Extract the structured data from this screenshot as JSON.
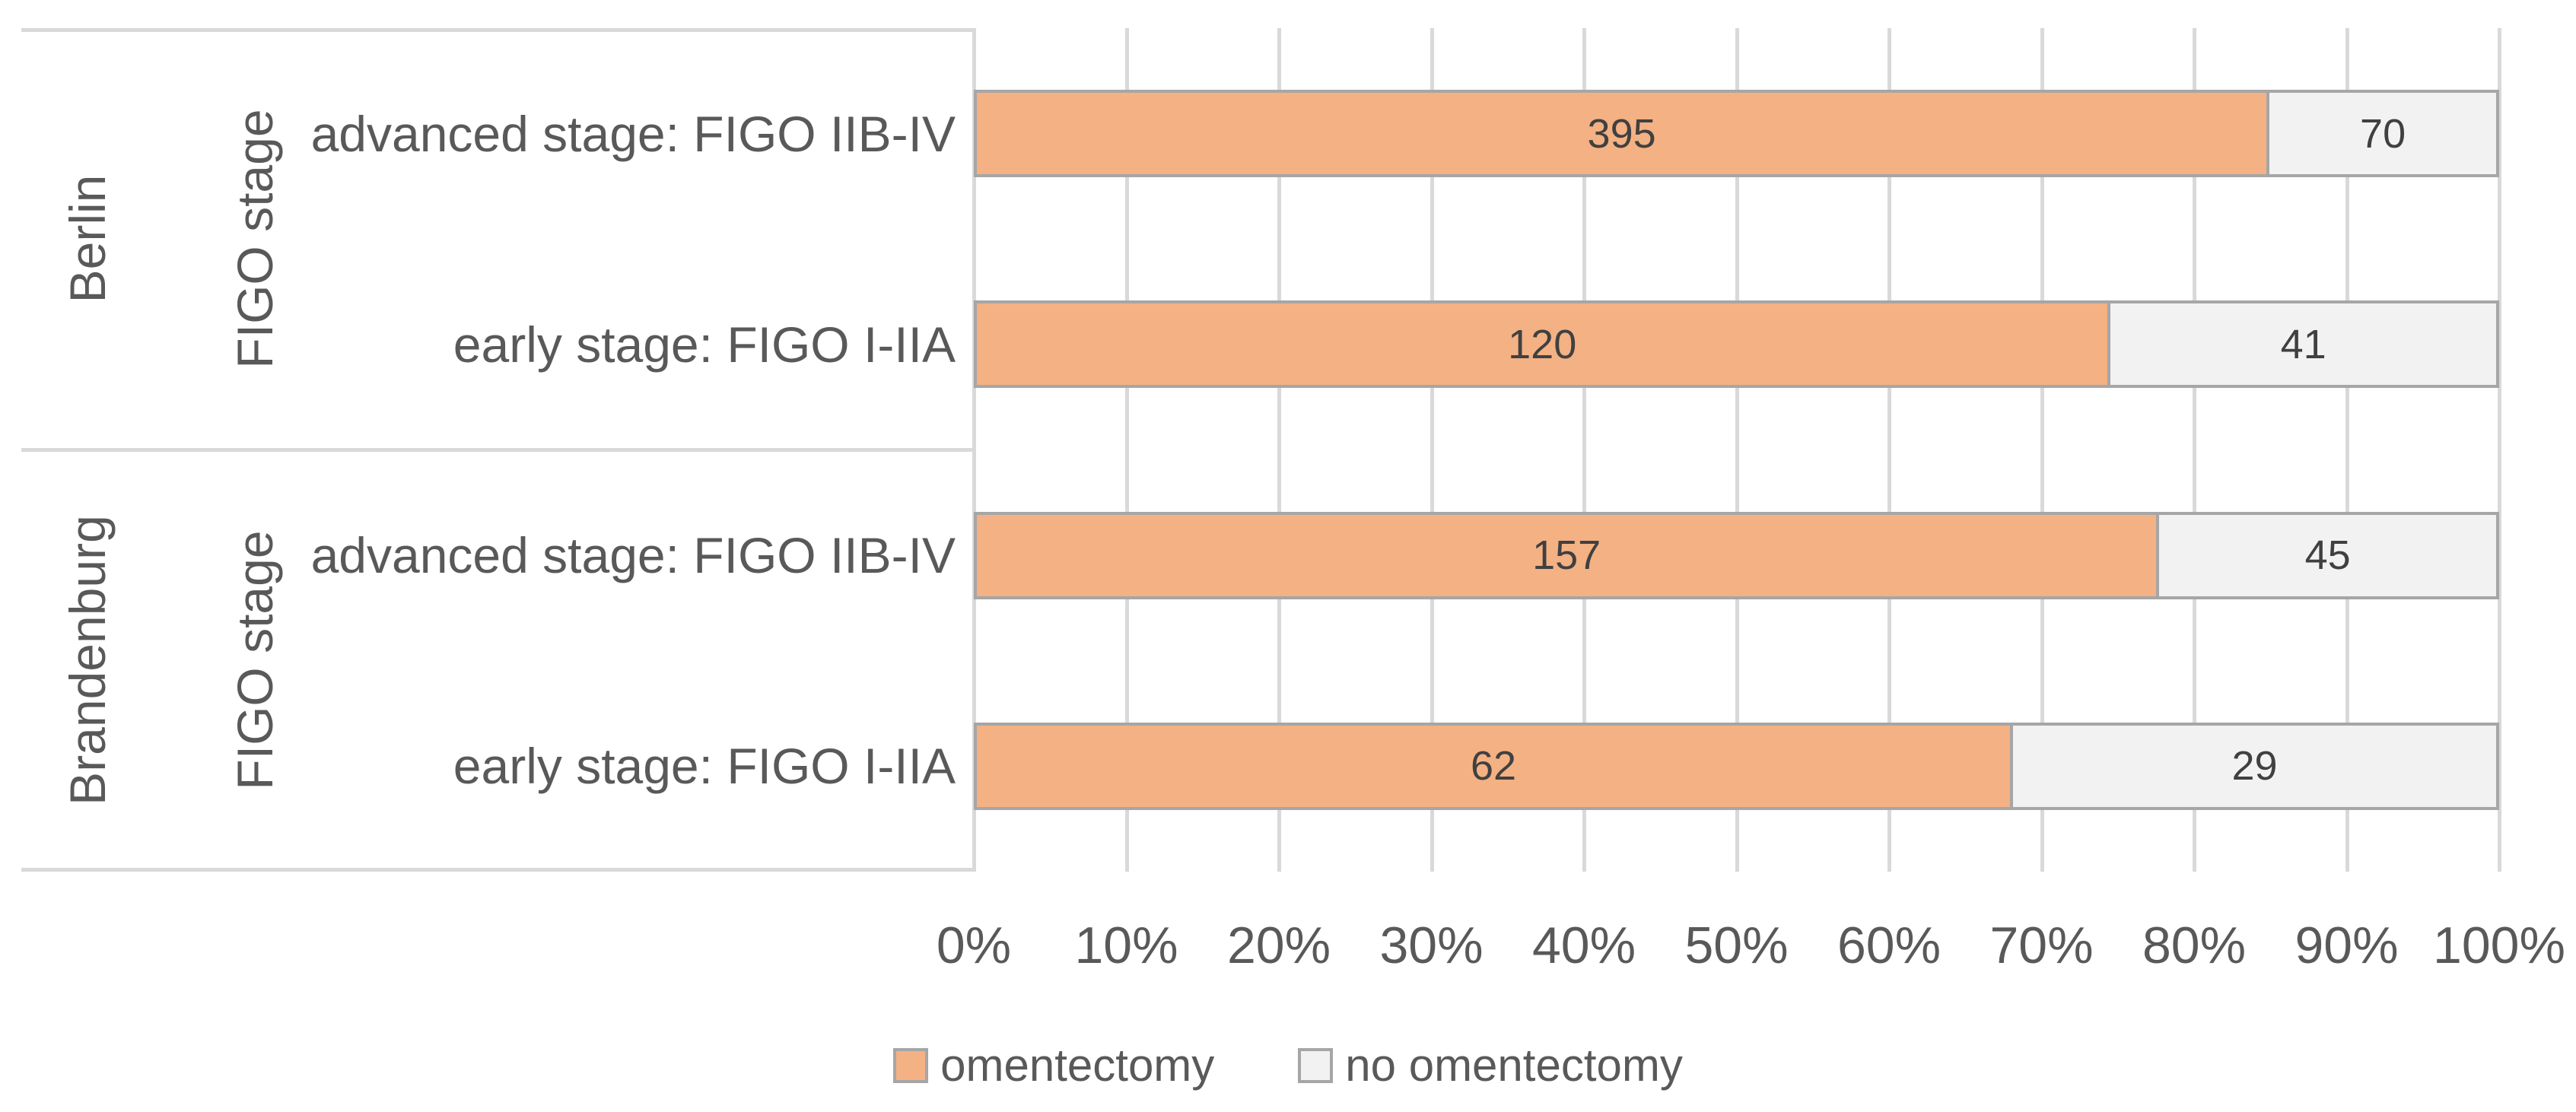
{
  "chart_data": {
    "type": "bar",
    "variant": "horizontal 100% stacked",
    "title": "",
    "xlabel": "",
    "ylabel": "FIGO stage",
    "xlim": [
      0,
      1
    ],
    "grid": "vertical",
    "legend_position": "bottom-center",
    "series": [
      {
        "name": "omentectomy",
        "color": "#F4B183"
      },
      {
        "name": "no omentectomy",
        "color": "#F2F2F2"
      }
    ],
    "groups": [
      {
        "region": "Berlin",
        "axis_label": "FIGO stage",
        "categories": [
          {
            "label": "advanced stage: FIGO IIB-IV",
            "values": [
              395,
              70
            ]
          },
          {
            "label": "early stage: FIGO I-IIA",
            "values": [
              120,
              41
            ]
          }
        ]
      },
      {
        "region": "Brandenburg",
        "axis_label": "FIGO stage",
        "categories": [
          {
            "label": "advanced stage: FIGO IIB-IV",
            "values": [
              157,
              45
            ]
          },
          {
            "label": "early stage: FIGO I-IIA",
            "values": [
              62,
              29
            ]
          }
        ]
      }
    ],
    "x_ticks": [
      "0%",
      "10%",
      "20%",
      "30%",
      "40%",
      "50%",
      "60%",
      "70%",
      "80%",
      "90%",
      "100%"
    ],
    "colors": {
      "bar_fill_omentectomy": "#F4B183",
      "bar_fill_no_omentectomy": "#F2F2F2",
      "bar_border": "#A6A6A6",
      "gridline": "#D9D9D9",
      "panel_border": "#D9D9D9",
      "axis_text": "#595959",
      "value_text": "#404040"
    }
  }
}
